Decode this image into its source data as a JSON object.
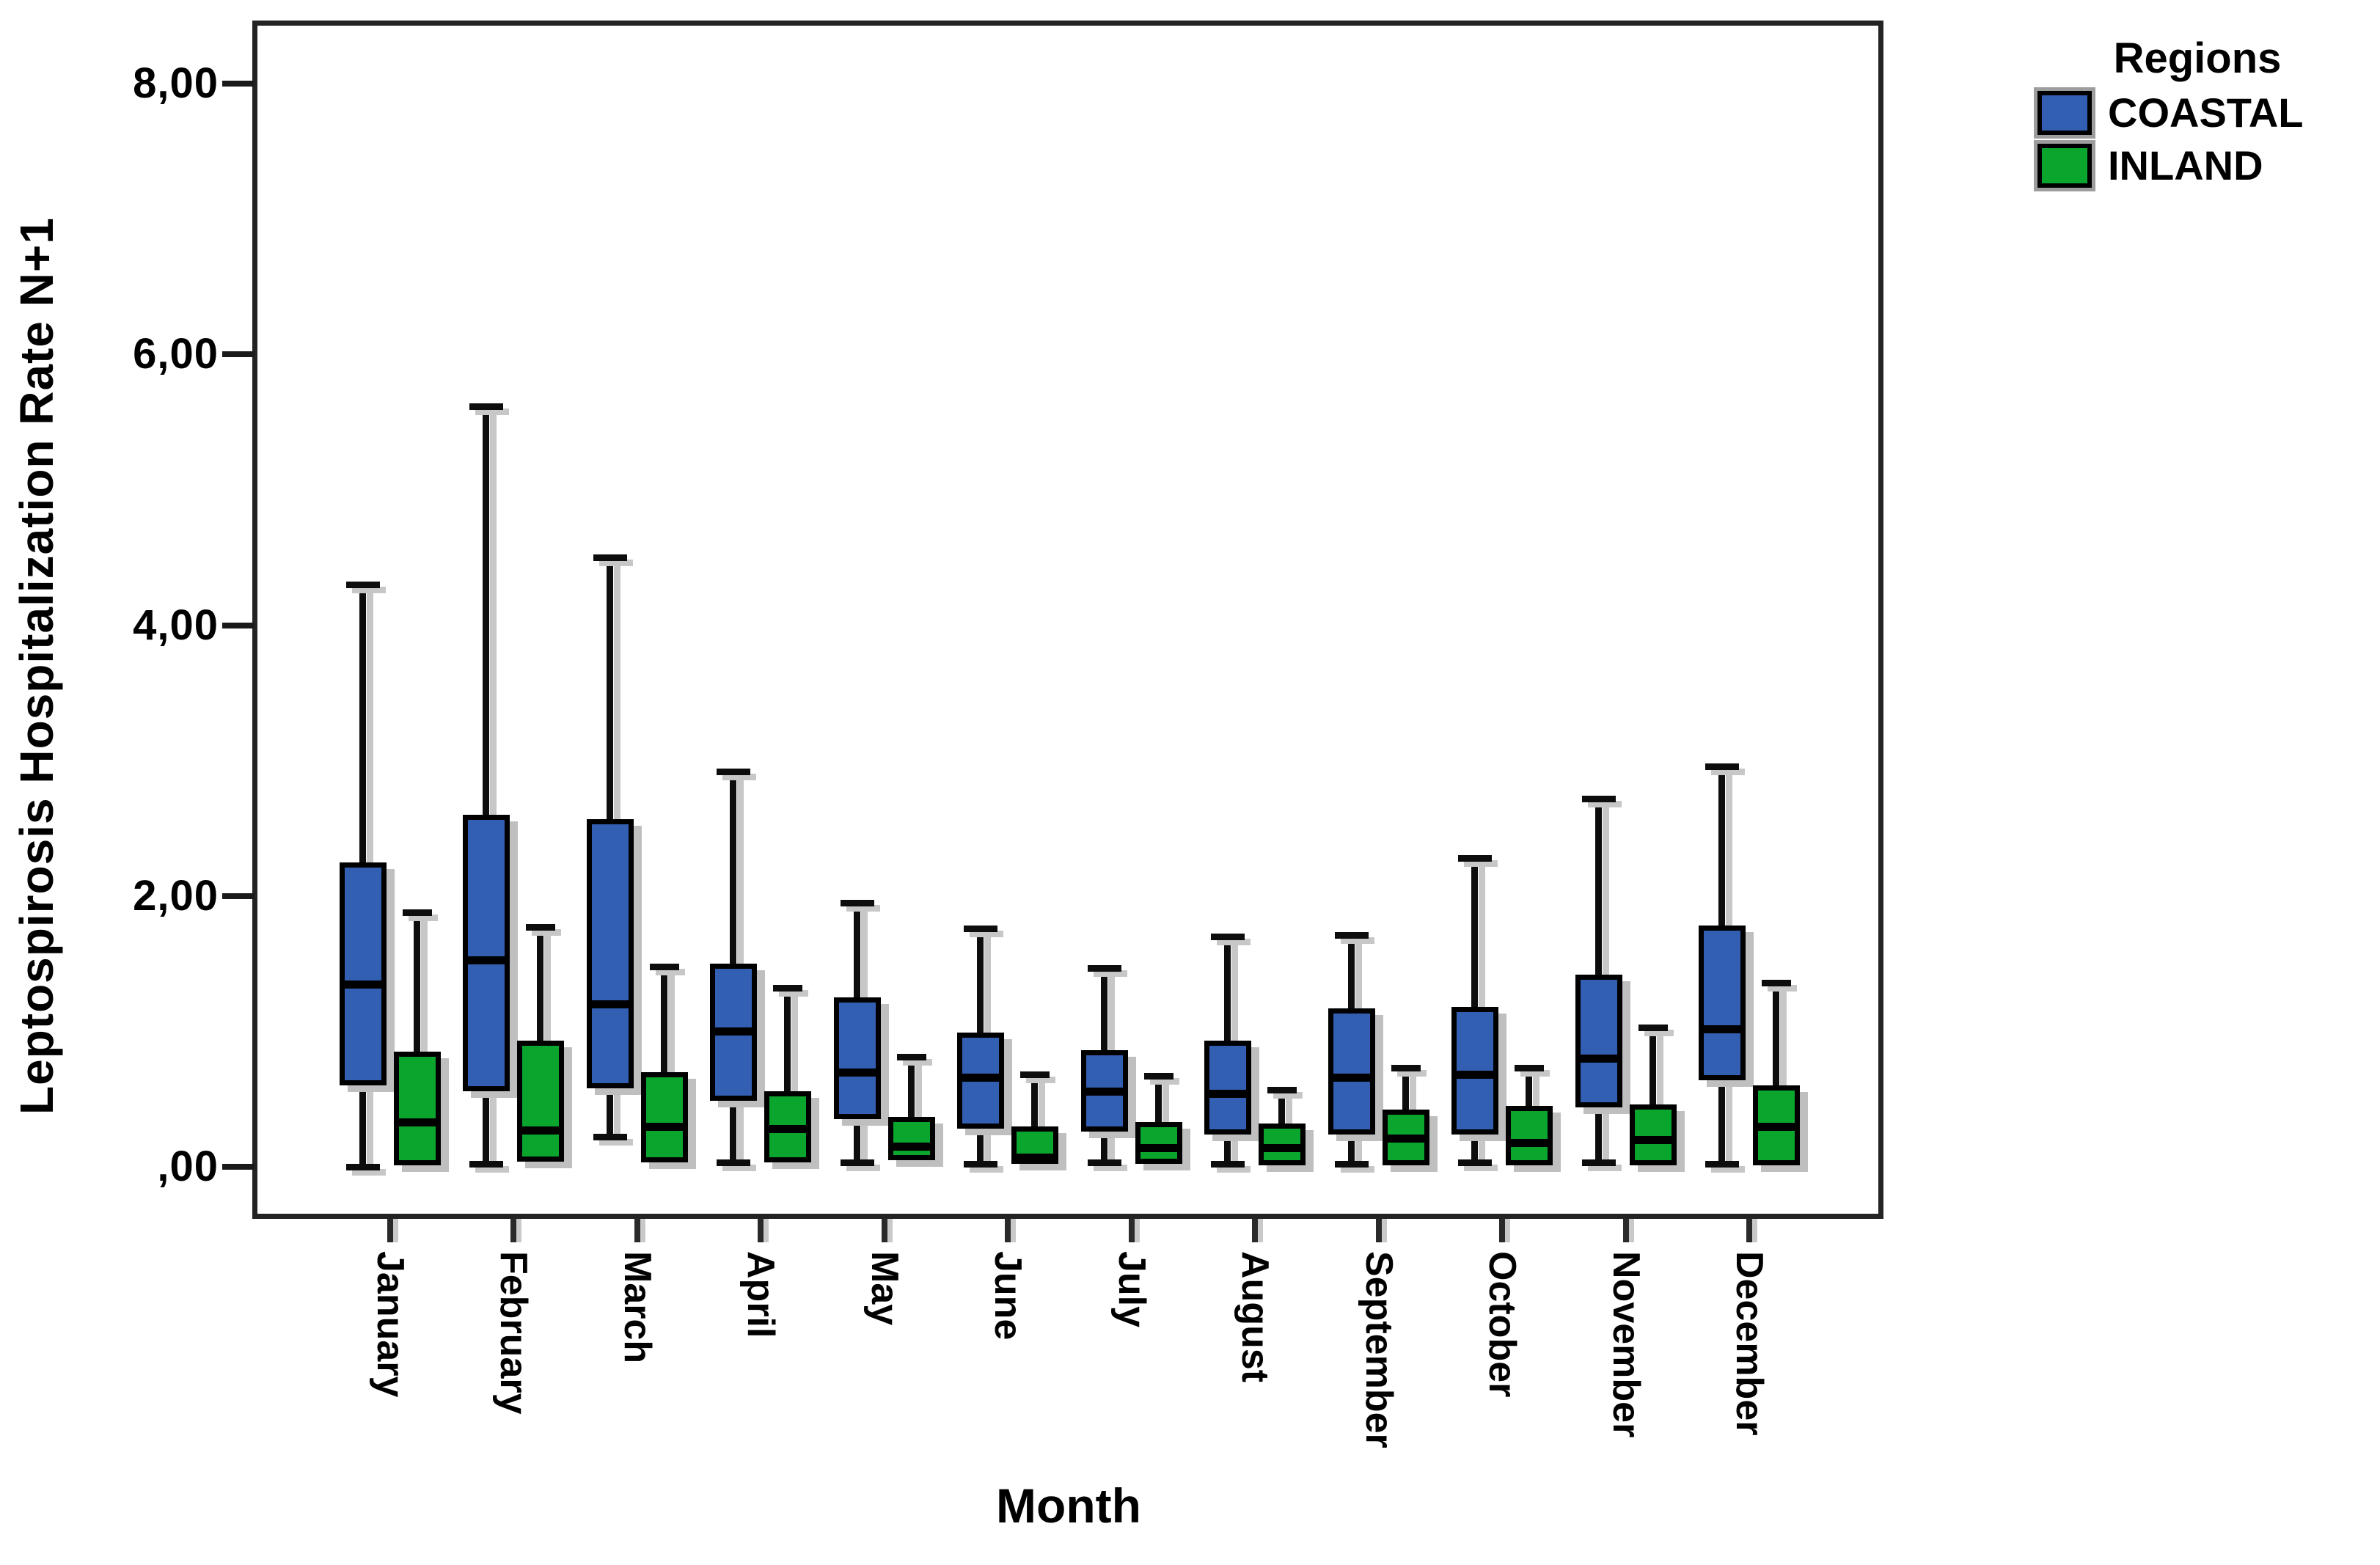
{
  "chart_data": {
    "type": "box",
    "title": "",
    "ylabel": "Leptospirosis Hospitalization Rate N+1",
    "xlabel": "Month",
    "categories": [
      "January",
      "February",
      "March",
      "April",
      "May",
      "June",
      "July",
      "August",
      "September",
      "October",
      "November",
      "December"
    ],
    "y_axis": {
      "ticks": [
        {
          "value": 8,
          "label": "8,00"
        },
        {
          "value": 6,
          "label": "6,00"
        },
        {
          "value": 4,
          "label": "4,00"
        },
        {
          "value": 2,
          "label": "2,00"
        },
        {
          "value": 0,
          "label": ",00"
        }
      ],
      "range": [
        -0.37,
        8.45
      ],
      "grid": false,
      "decimal_separator": "comma"
    },
    "legend": {
      "title": "Regions",
      "position": "top-right",
      "entries": [
        {
          "label": "COASTAL",
          "color": "#325FB2"
        },
        {
          "label": "INLAND",
          "color": "#0AA52D"
        }
      ]
    },
    "series": [
      {
        "name": "COASTAL",
        "color": "#325FB2",
        "values": [
          {
            "min": 0.0,
            "q1": 0.6,
            "med": 1.35,
            "q3": 2.25,
            "max": 4.3
          },
          {
            "min": 0.02,
            "q1": 0.56,
            "med": 1.53,
            "q3": 2.6,
            "max": 5.62
          },
          {
            "min": 0.22,
            "q1": 0.58,
            "med": 1.2,
            "q3": 2.57,
            "max": 4.5
          },
          {
            "min": 0.03,
            "q1": 0.49,
            "med": 1.0,
            "q3": 1.5,
            "max": 2.92
          },
          {
            "min": 0.03,
            "q1": 0.35,
            "med": 0.7,
            "q3": 1.25,
            "max": 1.95
          },
          {
            "min": 0.02,
            "q1": 0.28,
            "med": 0.66,
            "q3": 0.99,
            "max": 1.76
          },
          {
            "min": 0.03,
            "q1": 0.26,
            "med": 0.56,
            "q3": 0.86,
            "max": 1.47
          },
          {
            "min": 0.02,
            "q1": 0.24,
            "med": 0.54,
            "q3": 0.93,
            "max": 1.7
          },
          {
            "min": 0.02,
            "q1": 0.24,
            "med": 0.66,
            "q3": 1.17,
            "max": 1.71
          },
          {
            "min": 0.03,
            "q1": 0.24,
            "med": 0.68,
            "q3": 1.18,
            "max": 2.28
          },
          {
            "min": 0.03,
            "q1": 0.44,
            "med": 0.8,
            "q3": 1.42,
            "max": 2.72
          },
          {
            "min": 0.02,
            "q1": 0.64,
            "med": 1.02,
            "q3": 1.78,
            "max": 2.96
          }
        ]
      },
      {
        "name": "INLAND",
        "color": "#0AA52D",
        "values": [
          {
            "min": 0.0,
            "q1": 0.01,
            "med": 0.33,
            "q3": 0.85,
            "max": 1.88
          },
          {
            "min": 0.03,
            "q1": 0.04,
            "med": 0.27,
            "q3": 0.93,
            "max": 1.77
          },
          {
            "min": 0.0,
            "q1": 0.03,
            "med": 0.3,
            "q3": 0.7,
            "max": 1.48
          },
          {
            "min": 0.0,
            "q1": 0.03,
            "med": 0.28,
            "q3": 0.56,
            "max": 1.32
          },
          {
            "min": 0.0,
            "q1": 0.05,
            "med": 0.15,
            "q3": 0.37,
            "max": 0.81
          },
          {
            "min": 0.0,
            "q1": 0.02,
            "med": 0.07,
            "q3": 0.3,
            "max": 0.68
          },
          {
            "min": 0.0,
            "q1": 0.02,
            "med": 0.14,
            "q3": 0.33,
            "max": 0.67
          },
          {
            "min": 0.0,
            "q1": 0.01,
            "med": 0.14,
            "q3": 0.32,
            "max": 0.57
          },
          {
            "min": 0.0,
            "q1": 0.01,
            "med": 0.21,
            "q3": 0.42,
            "max": 0.73
          },
          {
            "min": 0.0,
            "q1": 0.01,
            "med": 0.18,
            "q3": 0.45,
            "max": 0.73
          },
          {
            "min": 0.0,
            "q1": 0.01,
            "med": 0.2,
            "q3": 0.46,
            "max": 1.03
          },
          {
            "min": 0.0,
            "q1": 0.01,
            "med": 0.3,
            "q3": 0.6,
            "max": 1.36
          }
        ]
      }
    ]
  }
}
